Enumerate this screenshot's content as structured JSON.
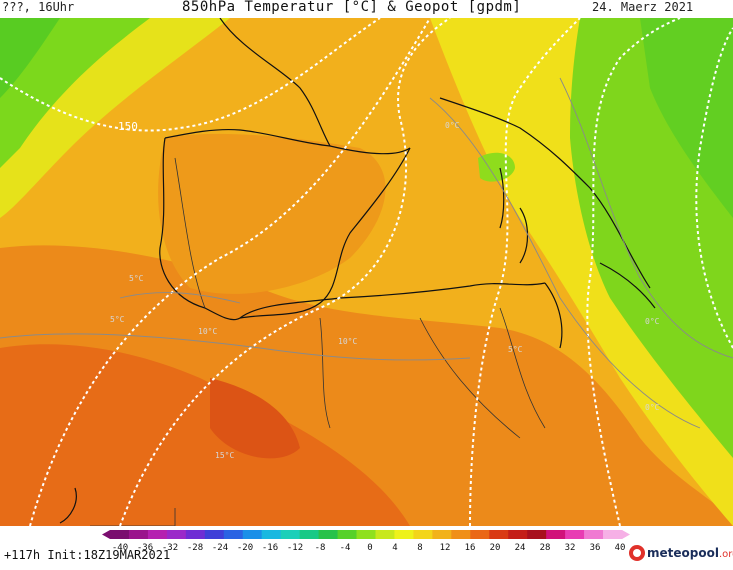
{
  "header": {
    "left": "???, 16Uhr",
    "title": "850hPa Temperatur [°C] & Geopot [gpdm]",
    "date": "24. Maerz 2021"
  },
  "map": {
    "contour_labels": [
      "150",
      "5°C",
      "10°C",
      "15°C",
      "0°C",
      "10°C",
      "5°C",
      "0°C",
      "5°C",
      "0°C"
    ]
  },
  "legend": {
    "ticks": [
      "-40",
      "-36",
      "-32",
      "-28",
      "-24",
      "-20",
      "-16",
      "-12",
      "-8",
      "-4",
      "0",
      "4",
      "8",
      "12",
      "16",
      "20",
      "24",
      "28",
      "32",
      "36",
      "40"
    ],
    "colors": [
      "#7a0e6f",
      "#9a148c",
      "#b521b0",
      "#9b29c9",
      "#6f2dd4",
      "#3f3fd8",
      "#2a63e3",
      "#1a8fe8",
      "#19b8e0",
      "#1bcfb9",
      "#18c986",
      "#28c24a",
      "#57d12a",
      "#8fe01e",
      "#c8e81c",
      "#eef21a",
      "#f3d51a",
      "#f2b21a",
      "#f08f18",
      "#ea6716",
      "#d93a14",
      "#c41e18",
      "#a8101e",
      "#d1127a",
      "#e83cb3",
      "#f07ad2",
      "#f6b0e6"
    ]
  },
  "footer": {
    "init": "+117h Init:18Z19MAR2021",
    "logo_brand": "meteopool",
    "logo_tld": ".org"
  }
}
